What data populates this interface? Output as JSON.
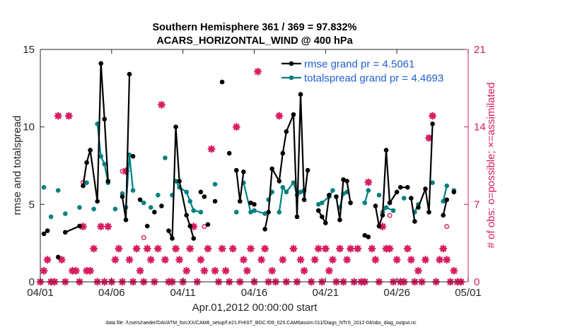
{
  "chart_data": {
    "type": "line",
    "title_line1": "Southern Hemisphere 361 / 369 = 97.832%",
    "title_line2": "ACARS_HORIZONTAL_WIND @ 400 hPa",
    "xlabel": "Apr.01,2012 00:00:00 start",
    "ylabel_left": "rmse and totalspread",
    "ylabel_right": "# of obs: o=possible; ×=assimilated",
    "footer": "data file: /Users/raeder/DAI/ATM_forcXX/CAM6_setup/f.e21.FHIST_BGC.f09_025.CAM6assim.011/Diags_NTrS_2012-04/obs_diag_output.nc",
    "xlim": [
      0,
      30
    ],
    "ylim_left": [
      0,
      15
    ],
    "ylim_right": [
      0,
      21
    ],
    "x_ticks": [
      0,
      5,
      10,
      15,
      20,
      25,
      30
    ],
    "x_tick_labels": [
      "04/01",
      "04/06",
      "04/11",
      "04/16",
      "04/21",
      "04/26",
      "05/01"
    ],
    "y_ticks_left": [
      0,
      5,
      10,
      15
    ],
    "y_tick_labels_left": [
      "0",
      "5",
      "10",
      "15"
    ],
    "y_ticks_right": [
      0,
      7,
      14,
      21
    ],
    "y_tick_labels_right": [
      "0",
      "7",
      "14",
      "21"
    ],
    "colors": {
      "rmse": "#000000",
      "spread": "#008080",
      "obs": "#d81b60",
      "legend_text": "#1f5fd6",
      "axis": "#262626"
    },
    "legend": [
      {
        "name": "rmse grand pr = 4.5061",
        "series": "rmse"
      },
      {
        "name": "totalspread grand pr = 4.4693",
        "series": "spread"
      }
    ],
    "series": [
      {
        "name": "rmse",
        "points": [
          [
            0.25,
            3.1
          ],
          [
            0.5,
            3.3
          ],
          [
            1.25,
            1.6
          ],
          [
            1.75,
            3.2
          ],
          [
            2.75,
            3.6
          ],
          [
            3,
            6.2
          ],
          [
            3.25,
            7.7
          ],
          [
            3.5,
            8.5
          ],
          [
            4,
            5.2
          ],
          [
            4.25,
            14.1
          ],
          [
            4.5,
            10.5
          ],
          [
            4.75,
            6.5
          ],
          [
            5.75,
            5.5
          ],
          [
            6,
            4
          ],
          [
            6.25,
            13.4
          ],
          [
            6.5,
            8.1
          ],
          [
            7,
            5.3
          ],
          [
            7.5,
            3.6
          ],
          [
            8,
            4.5
          ],
          [
            8.5,
            4.9
          ],
          [
            9,
            3.3
          ],
          [
            9.25,
            2.8
          ],
          [
            9.5,
            10
          ],
          [
            9.75,
            6.5
          ],
          [
            10.25,
            4.3
          ],
          [
            10.5,
            3.6
          ],
          [
            10.75,
            2.8
          ],
          [
            11.25,
            5.8
          ],
          [
            11.5,
            5.5
          ],
          [
            11.75,
            3.7
          ],
          [
            12.25,
            5.2
          ],
          [
            12.75,
            12.9
          ],
          [
            13.25,
            8.3
          ],
          [
            13.75,
            7.2
          ],
          [
            14,
            5.2
          ],
          [
            14.25,
            7.1
          ],
          [
            14.75,
            5.1
          ],
          [
            15,
            5
          ],
          [
            15.75,
            3.4
          ],
          [
            16,
            4.5
          ],
          [
            16.25,
            7.3
          ],
          [
            16.75,
            6.5
          ],
          [
            17,
            8.3
          ],
          [
            17.25,
            9.7
          ],
          [
            17.75,
            10.8
          ],
          [
            18,
            4.2
          ],
          [
            18.25,
            12.1
          ],
          [
            18.5,
            5.3
          ],
          [
            18.75,
            7.2
          ],
          [
            19.5,
            4.6
          ],
          [
            19.75,
            4.2
          ],
          [
            20,
            3.8
          ],
          [
            20.25,
            5.6
          ],
          [
            20.75,
            5.5
          ],
          [
            21,
            4
          ],
          [
            21.25,
            6.6
          ],
          [
            21.5,
            6.5
          ],
          [
            21.75,
            5.1
          ],
          [
            22.75,
            3
          ],
          [
            23,
            2.9
          ],
          [
            23.5,
            4.9
          ],
          [
            23.75,
            3.6
          ],
          [
            24,
            4.3
          ],
          [
            24.25,
            8.5
          ],
          [
            24.5,
            5.1
          ],
          [
            25,
            5.8
          ],
          [
            25.25,
            6.1
          ],
          [
            25.75,
            6.1
          ],
          [
            26,
            5.4
          ],
          [
            26.25,
            3.9
          ],
          [
            26.5,
            4.8
          ],
          [
            27,
            6
          ],
          [
            27.25,
            4.5
          ],
          [
            27.5,
            10.2
          ],
          [
            28.25,
            4.3
          ],
          [
            28.5,
            5.3
          ],
          [
            29,
            5.8
          ]
        ],
        "breaks": [
          [
            0,
            1
          ],
          [
            2
          ],
          [
            3,
            4
          ],
          [
            5,
            6,
            7,
            8,
            9,
            10,
            11
          ],
          [
            12,
            13,
            14
          ],
          [
            15
          ],
          [
            16
          ],
          [
            17
          ],
          [
            18
          ],
          [
            19
          ],
          [
            20,
            21,
            22,
            23,
            24,
            25,
            26
          ],
          [
            27
          ],
          [
            28
          ],
          [
            29
          ],
          [
            30
          ],
          [
            31
          ],
          [
            32
          ],
          [
            33,
            34,
            35
          ],
          [
            36,
            37
          ],
          [
            38,
            39,
            40,
            41,
            42,
            43,
            44,
            45,
            46,
            47,
            48
          ],
          [
            49,
            50,
            51,
            52
          ],
          [
            53,
            54,
            55,
            56,
            57
          ],
          [
            58,
            59
          ],
          [
            60,
            61,
            62,
            63,
            64,
            65
          ],
          [
            66,
            67
          ],
          [
            68,
            69
          ],
          [
            70,
            71,
            72,
            73
          ],
          [
            74,
            75
          ],
          [
            76
          ]
        ]
      },
      {
        "name": "totalspread",
        "points": [
          [
            0.25,
            6.1
          ],
          [
            0.75,
            4.2
          ],
          [
            1.25,
            5.9
          ],
          [
            1.75,
            4.4
          ],
          [
            2.75,
            4.8
          ],
          [
            3.25,
            6.4
          ],
          [
            3.75,
            4.7
          ],
          [
            4,
            10.2
          ],
          [
            4.25,
            8.1
          ],
          [
            4.5,
            7.6
          ],
          [
            4.75,
            6.4
          ],
          [
            5.25,
            4.7
          ],
          [
            5.75,
            5.7
          ],
          [
            6,
            4.8
          ],
          [
            6.25,
            8.2
          ],
          [
            6.5,
            5.9
          ],
          [
            7.25,
            5.1
          ],
          [
            7.75,
            4.8
          ],
          [
            8.25,
            5.6
          ],
          [
            8.75,
            8
          ],
          [
            9.25,
            5.6
          ],
          [
            9.5,
            6.5
          ],
          [
            9.75,
            6.1
          ],
          [
            10.25,
            5.8
          ],
          [
            10.5,
            5.2
          ],
          [
            10.75,
            4.6
          ],
          [
            11.25,
            4.5
          ],
          [
            12.25,
            6.3
          ],
          [
            13.75,
            4.5
          ],
          [
            14.25,
            6.4
          ],
          [
            14.75,
            4.5
          ],
          [
            15,
            4.6
          ],
          [
            15.75,
            4.4
          ],
          [
            16,
            5.3
          ],
          [
            16.25,
            5.8
          ],
          [
            16.75,
            4.5
          ],
          [
            17,
            6.1
          ],
          [
            17.25,
            5.8
          ],
          [
            17.75,
            6.4
          ],
          [
            18,
            5.6
          ],
          [
            18.25,
            5.8
          ],
          [
            18.5,
            5.9
          ],
          [
            19.5,
            5
          ],
          [
            19.75,
            5.1
          ],
          [
            20.25,
            5.5
          ],
          [
            20.5,
            5.9
          ],
          [
            21,
            4.8
          ],
          [
            21.25,
            5.7
          ],
          [
            21.5,
            5.8
          ],
          [
            22.75,
            5.1
          ],
          [
            23,
            5.9
          ],
          [
            23.75,
            5.6
          ],
          [
            24,
            4.5
          ],
          [
            24.25,
            4.8
          ],
          [
            24.75,
            4.6
          ],
          [
            25.5,
            5.4
          ],
          [
            26.25,
            4.5
          ],
          [
            26.5,
            5
          ],
          [
            27.5,
            6.4
          ],
          [
            28.25,
            5.2
          ],
          [
            28.5,
            6.2
          ],
          [
            29,
            5.9
          ]
        ],
        "breaks": [
          [
            0
          ],
          [
            1
          ],
          [
            2
          ],
          [
            3
          ],
          [
            4
          ],
          [
            5
          ],
          [
            6
          ],
          [
            7,
            8,
            9,
            10
          ],
          [
            11
          ],
          [
            12
          ],
          [
            13,
            14,
            15
          ],
          [
            16
          ],
          [
            17
          ],
          [
            18
          ],
          [
            19
          ],
          [
            20
          ],
          [
            21,
            22,
            23,
            24,
            25,
            26
          ],
          [
            27
          ],
          [
            28
          ],
          [
            29,
            30
          ],
          [
            31,
            32
          ],
          [
            33,
            34
          ],
          [
            35,
            36,
            37,
            38,
            39,
            40,
            41
          ],
          [
            42,
            43,
            44,
            45
          ],
          [
            46,
            47,
            48
          ],
          [
            49,
            50
          ],
          [
            51
          ],
          [
            52,
            53,
            54
          ],
          [
            55
          ],
          [
            56,
            57
          ],
          [
            58
          ],
          [
            59,
            60
          ],
          [
            61
          ]
        ]
      }
    ],
    "obs_assimilated": [
      [
        0,
        0
      ],
      [
        0.25,
        1
      ],
      [
        0.5,
        2
      ],
      [
        0.75,
        0
      ],
      [
        1,
        0
      ],
      [
        1.25,
        15
      ],
      [
        1.5,
        2
      ],
      [
        1.75,
        0
      ],
      [
        2,
        15
      ],
      [
        2.25,
        1
      ],
      [
        2.5,
        1
      ],
      [
        2.75,
        0
      ],
      [
        3,
        5
      ],
      [
        3.25,
        1
      ],
      [
        3.5,
        1
      ],
      [
        3.75,
        3
      ],
      [
        4,
        0
      ],
      [
        4.25,
        5
      ],
      [
        4.5,
        0
      ],
      [
        4.75,
        5
      ],
      [
        5,
        0
      ],
      [
        5.25,
        2
      ],
      [
        5.5,
        3
      ],
      [
        5.75,
        0
      ],
      [
        6,
        10
      ],
      [
        6.25,
        2
      ],
      [
        6.5,
        0
      ],
      [
        6.75,
        3
      ],
      [
        7,
        1
      ],
      [
        7.25,
        0
      ],
      [
        7.5,
        3
      ],
      [
        7.75,
        2
      ],
      [
        8,
        0
      ],
      [
        8.25,
        3
      ],
      [
        8.5,
        16
      ],
      [
        8.75,
        2
      ],
      [
        9,
        0
      ],
      [
        9.25,
        0
      ],
      [
        9.5,
        3
      ],
      [
        9.75,
        2
      ],
      [
        10,
        0
      ],
      [
        10.25,
        1
      ],
      [
        10.5,
        3
      ],
      [
        10.75,
        5
      ],
      [
        11,
        0
      ],
      [
        11.25,
        2
      ],
      [
        11.5,
        1
      ],
      [
        11.75,
        3
      ],
      [
        12,
        12
      ],
      [
        12.25,
        1
      ],
      [
        12.5,
        0
      ],
      [
        12.75,
        3
      ],
      [
        13,
        1
      ],
      [
        13.25,
        0
      ],
      [
        13.5,
        3
      ],
      [
        13.75,
        14
      ],
      [
        14,
        0
      ],
      [
        14.25,
        2
      ],
      [
        14.5,
        1
      ],
      [
        14.75,
        3
      ],
      [
        15,
        0
      ],
      [
        15.25,
        19
      ],
      [
        15.5,
        2
      ],
      [
        15.75,
        3
      ],
      [
        16,
        0
      ],
      [
        16.25,
        1
      ],
      [
        16.5,
        0
      ],
      [
        16.75,
        15
      ],
      [
        17,
        2
      ],
      [
        17.25,
        0
      ],
      [
        17.75,
        3
      ],
      [
        18,
        0
      ],
      [
        18.25,
        2
      ],
      [
        18.5,
        1
      ],
      [
        19,
        0
      ],
      [
        19.25,
        2
      ],
      [
        19.5,
        3
      ],
      [
        19.75,
        0
      ],
      [
        20,
        3
      ],
      [
        20.25,
        1
      ],
      [
        20.5,
        2
      ],
      [
        20.75,
        0
      ],
      [
        21,
        3
      ],
      [
        21.25,
        0
      ],
      [
        21.5,
        2
      ],
      [
        21.75,
        3
      ],
      [
        22,
        0
      ],
      [
        22.25,
        3
      ],
      [
        22.5,
        0
      ],
      [
        22.75,
        0
      ],
      [
        23,
        9
      ],
      [
        23.25,
        3
      ],
      [
        23.5,
        2
      ],
      [
        23.75,
        0
      ],
      [
        24,
        5
      ],
      [
        24.25,
        3
      ],
      [
        24.5,
        3
      ],
      [
        24.75,
        0
      ],
      [
        25,
        2
      ],
      [
        25.25,
        0
      ],
      [
        25.5,
        0
      ],
      [
        25.75,
        3
      ],
      [
        26,
        2
      ],
      [
        26.25,
        0
      ],
      [
        26.5,
        1
      ],
      [
        26.75,
        0
      ],
      [
        27,
        2
      ],
      [
        27.25,
        13
      ],
      [
        27.5,
        15
      ],
      [
        27.75,
        0
      ],
      [
        28,
        2
      ],
      [
        28.25,
        3
      ],
      [
        28.5,
        2
      ],
      [
        28.75,
        0
      ],
      [
        29,
        1
      ],
      [
        29.25,
        0
      ],
      [
        29.5,
        0
      ]
    ],
    "obs_possible": [
      [
        3,
        9
      ],
      [
        4.75,
        5
      ],
      [
        5.75,
        10
      ],
      [
        7.25,
        4
      ],
      [
        11.5,
        5
      ],
      [
        24.5,
        6
      ],
      [
        28.5,
        5
      ]
    ]
  }
}
